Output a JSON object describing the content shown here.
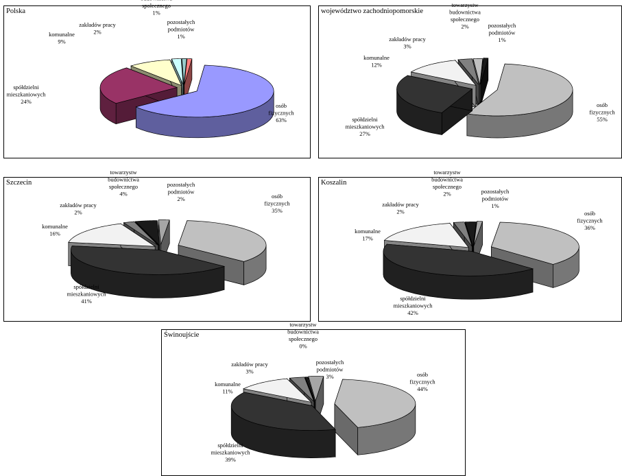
{
  "chart_data": [
    {
      "type": "pie",
      "title": "Polska",
      "colors": [
        "#9999ff",
        "#993366",
        "#ffffcc",
        "#ccffff",
        "#99cccc",
        "#ff8080"
      ],
      "slices": [
        {
          "label": "osób fizycznych",
          "value_label": "63%",
          "value": 63
        },
        {
          "label": "spółdzielni mieszkaniowych",
          "value_label": "24%",
          "value": 24
        },
        {
          "label": "komunalne",
          "value_label": "9%",
          "value": 9
        },
        {
          "label": "zakładów pracy",
          "value_label": "2%",
          "value": 2
        },
        {
          "label": "towarzystw budownictwa społecznego",
          "value_label": "1%",
          "value": 1
        },
        {
          "label": "pozostałych podmiotów",
          "value_label": "1%",
          "value": 1
        }
      ]
    },
    {
      "type": "pie",
      "title": "województwo zachodniopomorskie",
      "colors": [
        "#c0c0c0",
        "#333333",
        "#f2f2f2",
        "#808080",
        "#c0c0c0",
        "#1a1a1a"
      ],
      "slices": [
        {
          "label": "osób fizycznych",
          "value_label": "55%",
          "value": 55
        },
        {
          "label": "spółdzielni mieszkaniowych",
          "value_label": "27%",
          "value": 27
        },
        {
          "label": "komunalne",
          "value_label": "12%",
          "value": 12
        },
        {
          "label": "zakładów pracy",
          "value_label": "3%",
          "value": 3
        },
        {
          "label": "towarzystw budownictwa społecznego",
          "value_label": "2%",
          "value": 2
        },
        {
          "label": "pozostałych podmiotów",
          "value_label": "1%",
          "value": 1
        }
      ]
    },
    {
      "type": "pie",
      "title": "Szczecin",
      "colors": [
        "#c0c0c0",
        "#333333",
        "#f2f2f2",
        "#808080",
        "#1a1a1a",
        "#a6a6a6"
      ],
      "slices": [
        {
          "label": "osób fizycznych",
          "value_label": "35%",
          "value": 35
        },
        {
          "label": "spółdzielni mieszkaniowych",
          "value_label": "41%",
          "value": 41
        },
        {
          "label": "komunalne",
          "value_label": "16%",
          "value": 16
        },
        {
          "label": "zakładów pracy",
          "value_label": "2%",
          "value": 2
        },
        {
          "label": "towarzystw budownictwa społecznego",
          "value_label": "4%",
          "value": 4
        },
        {
          "label": "pozostałych podmiotów",
          "value_label": "2%",
          "value": 2
        }
      ]
    },
    {
      "type": "pie",
      "title": "Koszalin",
      "colors": [
        "#c0c0c0",
        "#333333",
        "#f2f2f2",
        "#808080",
        "#1a1a1a",
        "#a6a6a6"
      ],
      "slices": [
        {
          "label": "osób fizycznych",
          "value_label": "36%",
          "value": 36
        },
        {
          "label": "spółdzielni mieszkaniowych",
          "value_label": "42%",
          "value": 42
        },
        {
          "label": "komunalne",
          "value_label": "17%",
          "value": 17
        },
        {
          "label": "zakładów pracy",
          "value_label": "2%",
          "value": 2
        },
        {
          "label": "towarzystw budownictwa społecznego",
          "value_label": "2%",
          "value": 2
        },
        {
          "label": "pozostałych podmiotów",
          "value_label": "1%",
          "value": 1
        }
      ]
    },
    {
      "type": "pie",
      "title": "Świnoujście",
      "colors": [
        "#c0c0c0",
        "#333333",
        "#f2f2f2",
        "#808080",
        "#1a1a1a",
        "#a6a6a6"
      ],
      "slices": [
        {
          "label": "osób fizycznych",
          "value_label": "44%",
          "value": 44
        },
        {
          "label": "spółdzielni mieszkaniowych",
          "value_label": "39%",
          "value": 39
        },
        {
          "label": "komunalne",
          "value_label": "11%",
          "value": 11
        },
        {
          "label": "zakładów pracy",
          "value_label": "3%",
          "value": 3
        },
        {
          "label": "towarzystw budownictwa społecznego",
          "value_label": "0%",
          "value": 0
        },
        {
          "label": "pozostałych podmiotów",
          "value_label": "3%",
          "value": 3
        }
      ]
    }
  ]
}
